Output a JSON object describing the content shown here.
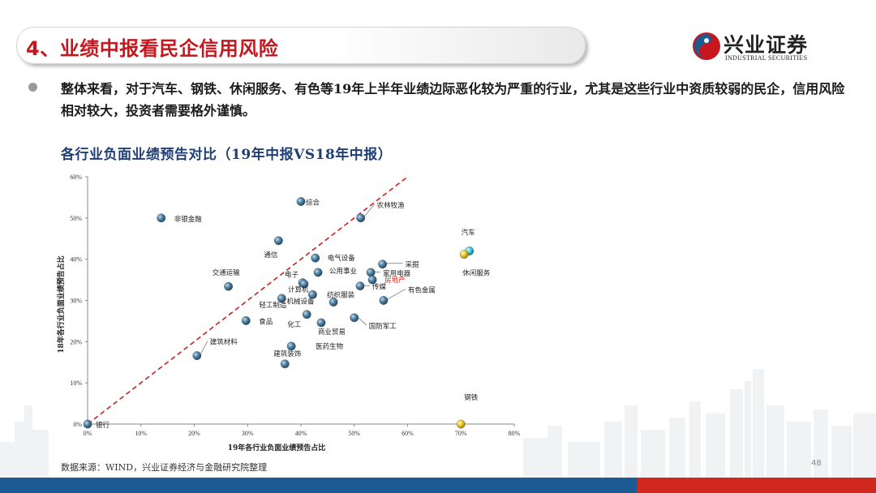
{
  "header": {
    "title": "4、业绩中报看民企信用风险",
    "logo_cn": "兴业证券",
    "logo_en": "INDUSTRIAL SECURITIES"
  },
  "bullet": {
    "text": "整体来看，对于汽车、钢铁、休闲服务、有色等19年上半年业绩边际恶化较为严重的行业，尤其是这些行业中资质较弱的民企，信用风险相对较大，投资者需要格外谨慎。"
  },
  "footer": {
    "source": "数据来源：WIND，兴业证券经济与金融研究院整理",
    "page": "48"
  },
  "colors": {
    "title_red": "#c8161d",
    "chart_title_blue": "#1f3f75",
    "point_blue": "#3d6c8c",
    "point_yellow": "#e8c21a",
    "point_cyan": "#3fc9d6",
    "diagonal": "#cc2020",
    "bar_blue": "#1d5a92",
    "bar_red": "#d0281e"
  },
  "chart_data": {
    "type": "scatter",
    "title": "各行业负面业绩预告对比（19年中报VS18年中报）",
    "xlabel": "19年各行业负面业绩预告占比",
    "ylabel": "18年各行业负面业绩预告占比",
    "xlim": [
      0,
      80
    ],
    "ylim": [
      0,
      60
    ],
    "xticks": [
      "0%",
      "10%",
      "20%",
      "30%",
      "40%",
      "50%",
      "60%",
      "70%",
      "80%"
    ],
    "yticks": [
      "0%",
      "10%",
      "20%",
      "30%",
      "40%",
      "50%",
      "60%"
    ],
    "grid": false,
    "reference_line": "y = x",
    "points": [
      {
        "name": "银行",
        "x": 0,
        "y": 0,
        "color": "blue"
      },
      {
        "name": "非银金融",
        "x": 13.8,
        "y": 50.0,
        "color": "blue"
      },
      {
        "name": "综合",
        "x": 40.0,
        "y": 54.0,
        "color": "blue"
      },
      {
        "name": "农林牧渔",
        "x": 51.2,
        "y": 50.0,
        "color": "blue"
      },
      {
        "name": "通信",
        "x": 35.8,
        "y": 44.5,
        "color": "blue"
      },
      {
        "name": "电气设备",
        "x": 42.7,
        "y": 40.3,
        "color": "blue"
      },
      {
        "name": "采掘",
        "x": 55.3,
        "y": 38.8,
        "color": "blue"
      },
      {
        "name": "电子",
        "x": 40.3,
        "y": 34.3,
        "color": "blue"
      },
      {
        "name": "公用事业",
        "x": 43.2,
        "y": 36.8,
        "color": "blue"
      },
      {
        "name": "家用电器",
        "x": 53.1,
        "y": 36.8,
        "color": "blue"
      },
      {
        "name": "房地产",
        "x": 53.4,
        "y": 35.0,
        "color": "blue"
      },
      {
        "name": "传媒",
        "x": 51.1,
        "y": 33.5,
        "color": "blue"
      },
      {
        "name": "交通运输",
        "x": 26.4,
        "y": 33.4,
        "color": "blue"
      },
      {
        "name": "计算机",
        "x": 40.6,
        "y": 34.0,
        "color": "blue"
      },
      {
        "name": "轻工制造",
        "x": 36.4,
        "y": 30.5,
        "color": "blue"
      },
      {
        "name": "机械设备",
        "x": 42.2,
        "y": 31.4,
        "color": "blue"
      },
      {
        "name": "纺织服装",
        "x": 46.1,
        "y": 29.6,
        "color": "blue"
      },
      {
        "name": "有色金属",
        "x": 55.5,
        "y": 30.0,
        "color": "blue"
      },
      {
        "name": "食品",
        "x": 29.7,
        "y": 25.1,
        "color": "blue"
      },
      {
        "name": "化工",
        "x": 41.1,
        "y": 26.6,
        "color": "blue"
      },
      {
        "name": "商业贸易",
        "x": 43.8,
        "y": 24.6,
        "color": "blue"
      },
      {
        "name": "国防军工",
        "x": 50.0,
        "y": 25.8,
        "color": "blue"
      },
      {
        "name": "建筑材料",
        "x": 20.5,
        "y": 16.6,
        "color": "blue"
      },
      {
        "name": "医药生物",
        "x": 38.2,
        "y": 18.9,
        "color": "blue"
      },
      {
        "name": "建筑装饰",
        "x": 37.0,
        "y": 14.6,
        "color": "blue"
      },
      {
        "name": "汽车",
        "x": 71.6,
        "y": 42.0,
        "color": "cyan"
      },
      {
        "name": "休闲服务",
        "x": 70.6,
        "y": 41.2,
        "color": "yellow"
      },
      {
        "name": "钢铁",
        "x": 70.0,
        "y": 0,
        "color": "yellow"
      }
    ]
  }
}
